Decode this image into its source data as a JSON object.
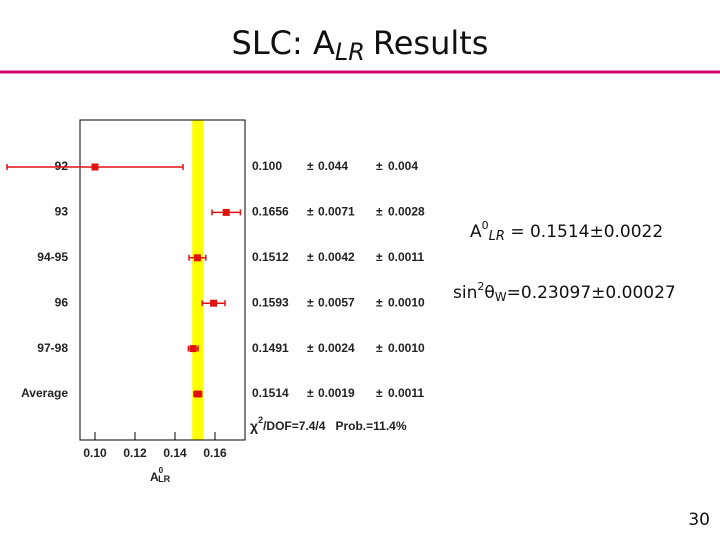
{
  "title": {
    "main": "SLC: A",
    "subscript": "LR",
    "rest": "Results"
  },
  "annotations": {
    "alr": {
      "main": "A",
      "sup": "0",
      "sub": "LR",
      "rest": " = 0.1514±0.0022"
    },
    "sin": {
      "main": "sin",
      "sup": "2",
      "theta": "θ",
      "sub": "W",
      "rest": "=0.23097±0.00027"
    }
  },
  "page_number": "30",
  "chart_data": {
    "type": "errorbar",
    "categories": [
      "92",
      "93",
      "94-95",
      "96",
      "97-98",
      "Average"
    ],
    "values": [
      0.1,
      0.1656,
      0.1512,
      0.1593,
      0.1491,
      0.1514
    ],
    "value_labels": [
      "0.100",
      "0.1656",
      "0.1512",
      "0.1593",
      "0.1491",
      "0.1514"
    ],
    "errors": [
      0.044,
      0.0071,
      0.0042,
      0.0057,
      0.0024,
      0.0019
    ],
    "error_labels": [
      "0.044",
      "0.0071",
      "0.0042",
      "0.0057",
      "0.0024",
      "0.0019"
    ],
    "sys_errors": [
      0.004,
      0.0028,
      0.0011,
      0.001,
      0.001,
      0.0011
    ],
    "sys_error_labels": [
      "0.004",
      "0.0028",
      "0.0011",
      "0.0010",
      "0.0010",
      "0.0011"
    ],
    "pm": "±",
    "color": "#e01010",
    "band": [
      0.1486,
      0.1542
    ],
    "band_color": "#ffff00",
    "xlim": [
      0.0925,
      0.175
    ],
    "xticks": [
      {
        "value": 0.1,
        "label": "0.10"
      },
      0.12,
      0.14,
      0.16
    ],
    "xlabel": {
      "main": "A",
      "sup": "0",
      "sub": "LR"
    },
    "fit": {
      "chi": "χ",
      "sup": "2",
      "dof": "/DOF=7.4/4",
      "prob": "Prob.=11.4%"
    }
  }
}
